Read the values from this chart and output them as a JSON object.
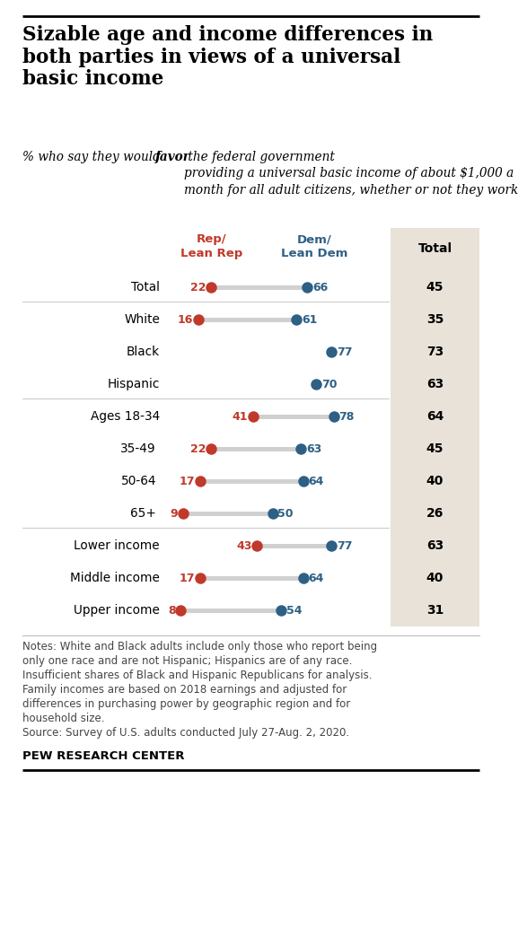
{
  "title": "Sizable age and income differences in\nboth parties in views of a universal\nbasic income",
  "subtitle1": "% who say they would ",
  "subtitle_bold": "favor",
  "subtitle2": " the federal government\nproviding a universal basic income of about $1,000 a\nmonth for all adult citizens, whether or not they work",
  "col_header_rep": "Rep/\nLean Rep",
  "col_header_dem": "Dem/\nLean Dem",
  "col_header_total": "Total",
  "rows": [
    {
      "label": "Total",
      "rep": 22,
      "dem": 66,
      "total": 45,
      "group_sep_above": false,
      "has_rep": true,
      "indent": false
    },
    {
      "label": "White",
      "rep": 16,
      "dem": 61,
      "total": 35,
      "group_sep_above": true,
      "has_rep": true,
      "indent": false
    },
    {
      "label": "Black",
      "rep": null,
      "dem": 77,
      "total": 73,
      "group_sep_above": false,
      "has_rep": false,
      "indent": false
    },
    {
      "label": "Hispanic",
      "rep": null,
      "dem": 70,
      "total": 63,
      "group_sep_above": false,
      "has_rep": false,
      "indent": false
    },
    {
      "label": "Ages 18-34",
      "rep": 41,
      "dem": 78,
      "total": 64,
      "group_sep_above": true,
      "has_rep": true,
      "indent": false
    },
    {
      "label": "35-49",
      "rep": 22,
      "dem": 63,
      "total": 45,
      "group_sep_above": false,
      "has_rep": true,
      "indent": true
    },
    {
      "label": "50-64",
      "rep": 17,
      "dem": 64,
      "total": 40,
      "group_sep_above": false,
      "has_rep": true,
      "indent": true
    },
    {
      "label": "65+",
      "rep": 9,
      "dem": 50,
      "total": 26,
      "group_sep_above": false,
      "has_rep": true,
      "indent": true
    },
    {
      "label": "Lower income",
      "rep": 43,
      "dem": 77,
      "total": 63,
      "group_sep_above": true,
      "has_rep": true,
      "indent": false
    },
    {
      "label": "Middle income",
      "rep": 17,
      "dem": 64,
      "total": 40,
      "group_sep_above": false,
      "has_rep": true,
      "indent": false
    },
    {
      "label": "Upper income",
      "rep": 8,
      "dem": 54,
      "total": 31,
      "group_sep_above": false,
      "has_rep": true,
      "indent": false
    }
  ],
  "rep_color": "#c0392b",
  "dem_color": "#2e6085",
  "bar_color": "#d0d0d0",
  "total_bg_color": "#e8e2d9",
  "notes_line1": "Notes: White and Black adults include only those who report being",
  "notes_line2": "only one race and are not Hispanic; Hispanics are of any race.",
  "notes_line3": "Insufficient shares of Black and Hispanic Republicans for analysis.",
  "notes_line4": "Family incomes are based on 2018 earnings and adjusted for",
  "notes_line5": "differences in purchasing power by geographic region and for",
  "notes_line6": "household size.",
  "notes_line7": "Source: Survey of U.S. adults conducted July 27-Aug. 2, 2020.",
  "footer": "PEW RESEARCH CENTER"
}
